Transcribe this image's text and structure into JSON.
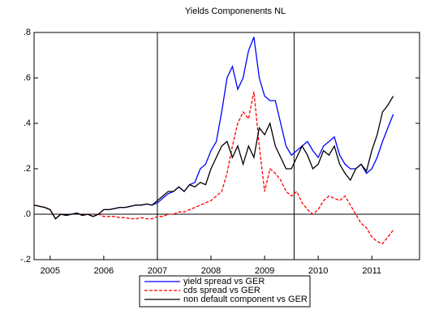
{
  "chart_data": {
    "type": "line",
    "title": "Yields Componenents NL",
    "x": [
      2004.7,
      2004.8,
      2004.9,
      2005.0,
      2005.1,
      2005.2,
      2005.3,
      2005.4,
      2005.5,
      2005.6,
      2005.7,
      2005.8,
      2005.9,
      2006.0,
      2006.1,
      2006.2,
      2006.3,
      2006.4,
      2006.5,
      2006.6,
      2006.7,
      2006.8,
      2006.9,
      2007.0,
      2007.1,
      2007.2,
      2007.3,
      2007.4,
      2007.5,
      2007.6,
      2007.7,
      2007.8,
      2007.9,
      2008.0,
      2008.1,
      2008.2,
      2008.3,
      2008.4,
      2008.5,
      2008.6,
      2008.7,
      2008.8,
      2008.9,
      2009.0,
      2009.1,
      2009.2,
      2009.3,
      2009.4,
      2009.5,
      2009.6,
      2009.7,
      2009.8,
      2009.9,
      2010.0,
      2010.1,
      2010.2,
      2010.3,
      2010.4,
      2010.5,
      2010.6,
      2010.7,
      2010.8,
      2010.9,
      2011.0,
      2011.1,
      2011.2,
      2011.3,
      2011.4
    ],
    "series": [
      {
        "name": "yield spread vs GER",
        "color": "#0000ff",
        "dashed": false,
        "values": [
          0.04,
          0.035,
          0.03,
          0.02,
          -0.02,
          0,
          -0.005,
          0,
          0.005,
          -0.005,
          0,
          -0.01,
          0,
          0.02,
          0.02,
          0.025,
          0.03,
          0.03,
          0.035,
          0.04,
          0.04,
          0.045,
          0.04,
          0.05,
          0.07,
          0.09,
          0.1,
          0.12,
          0.1,
          0.13,
          0.14,
          0.2,
          0.22,
          0.28,
          0.32,
          0.45,
          0.6,
          0.65,
          0.55,
          0.6,
          0.72,
          0.78,
          0.6,
          0.52,
          0.5,
          0.5,
          0.4,
          0.3,
          0.26,
          0.28,
          0.3,
          0.32,
          0.28,
          0.25,
          0.3,
          0.32,
          0.34,
          0.26,
          0.22,
          0.2,
          0.2,
          0.22,
          0.18,
          0.2,
          0.25,
          0.32,
          0.38,
          0.44
        ]
      },
      {
        "name": "cds spread vs GER",
        "color": "#ff0000",
        "dashed": true,
        "values": [
          0.04,
          0.035,
          0.03,
          0.02,
          -0.02,
          0,
          -0.005,
          0,
          0.005,
          -0.005,
          0,
          -0.01,
          0,
          -0.01,
          -0.01,
          -0.01,
          -0.015,
          -0.015,
          -0.02,
          -0.02,
          -0.015,
          -0.02,
          -0.02,
          -0.01,
          -0.01,
          0,
          0,
          0.01,
          0.01,
          0.02,
          0.03,
          0.04,
          0.05,
          0.06,
          0.08,
          0.1,
          0.18,
          0.3,
          0.4,
          0.45,
          0.42,
          0.54,
          0.3,
          0.1,
          0.2,
          0.18,
          0.15,
          0.1,
          0.08,
          0.1,
          0.05,
          0.02,
          0,
          0.02,
          0.06,
          0.08,
          0.07,
          0.06,
          0.08,
          0.04,
          0,
          -0.04,
          -0.06,
          -0.1,
          -0.12,
          -0.13,
          -0.1,
          -0.07
        ]
      },
      {
        "name": "non default component vs GER",
        "color": "#000000",
        "dashed": false,
        "values": [
          0.04,
          0.035,
          0.03,
          0.02,
          -0.02,
          0,
          -0.005,
          0,
          0.005,
          -0.005,
          0,
          -0.01,
          0,
          0.02,
          0.02,
          0.025,
          0.03,
          0.03,
          0.035,
          0.04,
          0.04,
          0.045,
          0.04,
          0.06,
          0.08,
          0.1,
          0.1,
          0.12,
          0.1,
          0.13,
          0.12,
          0.14,
          0.13,
          0.2,
          0.25,
          0.3,
          0.32,
          0.25,
          0.3,
          0.22,
          0.3,
          0.25,
          0.38,
          0.35,
          0.4,
          0.3,
          0.25,
          0.2,
          0.2,
          0.25,
          0.3,
          0.26,
          0.2,
          0.22,
          0.28,
          0.26,
          0.3,
          0.22,
          0.18,
          0.15,
          0.2,
          0.22,
          0.19,
          0.28,
          0.35,
          0.45,
          0.48,
          0.52
        ]
      }
    ],
    "xlim": [
      2004.7,
      2011.89
    ],
    "xticks": [
      2005,
      2006,
      2007,
      2008,
      2009,
      2010,
      2011
    ],
    "ylim": [
      -0.2,
      0.8
    ],
    "yticks": [
      {
        "value": -0.2,
        "label": "-.2"
      },
      {
        "value": 0,
        "label": ".0"
      },
      {
        "value": 0.2,
        "label": ".2"
      },
      {
        "value": 0.4,
        "label": ".4"
      },
      {
        "value": 0.6,
        "label": ".6"
      },
      {
        "value": 0.8,
        "label": ".8"
      }
    ],
    "hline": 0,
    "vlines": [
      2007,
      2009.55
    ],
    "grid": false
  }
}
